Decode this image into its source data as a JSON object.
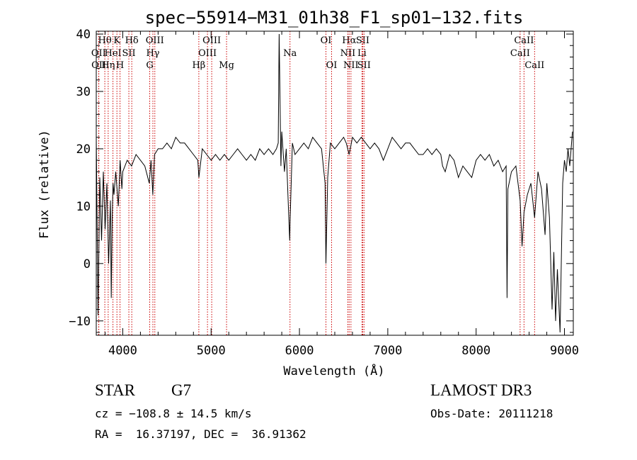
{
  "chart_data": {
    "type": "line",
    "title": "spec−55914−M31_01h38_F1_sp01−132.fits",
    "xlabel": "Wavelength (Å)",
    "ylabel": "Flux (relative)",
    "xlim": [
      3700,
      9100
    ],
    "ylim": [
      -12.5,
      40.5
    ],
    "x_ticks": [
      4000,
      5000,
      6000,
      7000,
      8000,
      9000
    ],
    "y_ticks": [
      -10,
      0,
      10,
      20,
      30,
      40
    ],
    "y_tick_labels": [
      "−10",
      "0",
      "10",
      "20",
      "30",
      "40"
    ],
    "series": [
      {
        "name": "spectrum",
        "x": [
          3700,
          3720,
          3740,
          3760,
          3780,
          3800,
          3820,
          3840,
          3860,
          3870,
          3880,
          3890,
          3900,
          3920,
          3950,
          3970,
          3990,
          4000,
          4050,
          4100,
          4150,
          4200,
          4250,
          4300,
          4320,
          4340,
          4360,
          4400,
          4450,
          4500,
          4550,
          4600,
          4650,
          4700,
          4750,
          4800,
          4850,
          4862,
          4900,
          4950,
          5000,
          5050,
          5100,
          5150,
          5200,
          5250,
          5300,
          5350,
          5400,
          5450,
          5500,
          5550,
          5600,
          5650,
          5700,
          5740,
          5760,
          5770,
          5790,
          5800,
          5830,
          5850,
          5870,
          5890,
          5895,
          5920,
          5950,
          6000,
          6050,
          6100,
          6150,
          6200,
          6250,
          6290,
          6300,
          6320,
          6350,
          6400,
          6450,
          6500,
          6530,
          6563,
          6600,
          6650,
          6700,
          6750,
          6800,
          6850,
          6900,
          6950,
          7000,
          7050,
          7100,
          7150,
          7200,
          7250,
          7300,
          7350,
          7400,
          7450,
          7500,
          7550,
          7600,
          7620,
          7650,
          7700,
          7750,
          7800,
          7850,
          7900,
          7950,
          8000,
          8050,
          8100,
          8150,
          8200,
          8250,
          8300,
          8340,
          8350,
          8360,
          8400,
          8450,
          8498,
          8520,
          8542,
          8580,
          8620,
          8662,
          8700,
          8740,
          8780,
          8800,
          8830,
          8860,
          8880,
          8900,
          8920,
          8950,
          8980,
          9000,
          9020,
          9040,
          9060,
          9090
        ],
        "y": [
          22,
          -9,
          15,
          4,
          16,
          6,
          14,
          0,
          11,
          -6,
          8,
          14,
          12,
          16,
          10,
          18,
          13,
          16,
          18,
          17,
          19,
          18,
          17,
          14,
          18,
          12,
          19,
          20,
          20,
          21,
          20,
          22,
          21,
          21,
          20,
          19,
          18,
          15,
          20,
          19,
          18,
          19,
          18,
          19,
          18,
          19,
          20,
          19,
          18,
          19,
          18,
          20,
          19,
          20,
          19,
          20,
          21,
          40,
          17,
          23,
          16,
          20,
          12,
          4,
          8,
          21,
          19,
          20,
          21,
          20,
          22,
          21,
          20,
          14,
          0,
          15,
          21,
          20,
          21,
          22,
          21,
          19,
          22,
          21,
          22,
          21,
          20,
          21,
          20,
          18,
          20,
          22,
          21,
          20,
          21,
          21,
          20,
          19,
          19,
          20,
          19,
          20,
          19,
          17,
          16,
          19,
          18,
          15,
          17,
          16,
          15,
          18,
          19,
          18,
          19,
          17,
          18,
          16,
          17,
          -6,
          13,
          16,
          17,
          11,
          3,
          9,
          12,
          14,
          8,
          16,
          13,
          5,
          14,
          8,
          -8,
          2,
          -10,
          -1,
          -12,
          14,
          18,
          16,
          20,
          17,
          23
        ]
      }
    ],
    "lines": [
      {
        "name": "Hθ",
        "wl": 3797,
        "row": 0
      },
      {
        "name": "OII",
        "wl": 3727,
        "row": 1
      },
      {
        "name": "OII",
        "wl": 3729,
        "row": 2
      },
      {
        "name": "K",
        "wl": 3934,
        "row": 0
      },
      {
        "name": "HeI",
        "wl": 3889,
        "row": 1
      },
      {
        "name": "Hη",
        "wl": 3835,
        "row": 2
      },
      {
        "name": "SII",
        "wl": 4069,
        "row": 1
      },
      {
        "name": "H",
        "wl": 3969,
        "row": 2
      },
      {
        "name": "Hδ",
        "wl": 4102,
        "row": 0
      },
      {
        "name": "OIII",
        "wl": 4363,
        "row": 0
      },
      {
        "name": "Hγ",
        "wl": 4341,
        "row": 1
      },
      {
        "name": "G",
        "wl": 4305,
        "row": 2
      },
      {
        "name": "OIII",
        "wl": 5007,
        "row": 0
      },
      {
        "name": "OIII",
        "wl": 4959,
        "row": 1
      },
      {
        "name": "Hβ",
        "wl": 4861,
        "row": 2
      },
      {
        "name": "Mg",
        "wl": 5175,
        "row": 2
      },
      {
        "name": "Na",
        "wl": 5893,
        "row": 1
      },
      {
        "name": "OI",
        "wl": 6300,
        "row": 0
      },
      {
        "name": "OI",
        "wl": 6364,
        "row": 2
      },
      {
        "name": "Hα",
        "wl": 6563,
        "row": 0
      },
      {
        "name": "SII",
        "wl": 6716,
        "row": 0
      },
      {
        "name": "NII",
        "wl": 6548,
        "row": 1
      },
      {
        "name": "Li",
        "wl": 6708,
        "row": 1
      },
      {
        "name": "NII",
        "wl": 6583,
        "row": 2
      },
      {
        "name": "SII",
        "wl": 6731,
        "row": 2
      },
      {
        "name": "CaII",
        "wl": 8542,
        "row": 0
      },
      {
        "name": "CaII",
        "wl": 8498,
        "row": 1
      },
      {
        "name": "CaII",
        "wl": 8662,
        "row": 2
      }
    ],
    "line_color": "#cc0000"
  },
  "info": {
    "class": "STAR",
    "subclass": "G7",
    "survey": "LAMOST DR3",
    "cz": "cz = −108.8 ± 14.5 km/s",
    "obs_date": "Obs-Date: 20111218",
    "radec": "RA =  16.37197, DEC =  36.91362"
  }
}
